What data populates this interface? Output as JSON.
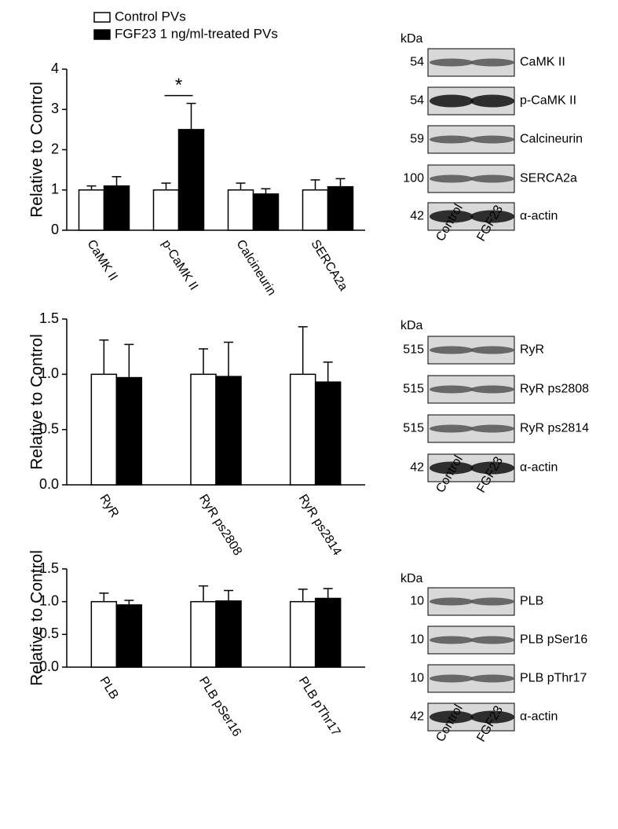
{
  "chart_data": [
    {
      "type": "bar",
      "ylabel": "Relative to Control",
      "annotation": "*",
      "categories": [
        "CaMK II",
        "p-CaMK II",
        "Calcineurin",
        "SERCA2a"
      ],
      "series": [
        {
          "name": "Control PVs",
          "color": "#ffffff",
          "values": [
            1,
            1,
            1,
            1
          ],
          "errors": [
            0.1,
            0.17,
            0.17,
            0.25
          ]
        },
        {
          "name": "FGF23 1 ng/ml-treated PVs",
          "color": "#000000",
          "values": [
            1.1,
            2.5,
            0.9,
            1.08
          ],
          "errors": [
            0.23,
            0.65,
            0.13,
            0.2
          ]
        }
      ],
      "ylim": [
        0,
        4
      ],
      "yticks": [
        0,
        1,
        2,
        3,
        4
      ]
    },
    {
      "type": "bar",
      "ylabel": "Relative to Control",
      "categories": [
        "RyR",
        "RyR ps2808",
        "RyR ps2814"
      ],
      "series": [
        {
          "color": "#ffffff",
          "values": [
            1,
            1,
            1
          ],
          "errors": [
            0.31,
            0.23,
            0.43
          ]
        },
        {
          "color": "#000000",
          "values": [
            0.97,
            0.98,
            0.93
          ],
          "errors": [
            0.3,
            0.31,
            0.18
          ]
        }
      ],
      "ylim": [
        0,
        1.5
      ],
      "yticks": [
        {
          "value": 0,
          "label": "0.0"
        },
        0.5,
        {
          "value": 1,
          "label": "1.0"
        },
        1.5
      ]
    },
    {
      "type": "bar",
      "ylabel": "Relative to Control",
      "categories": [
        "PLB",
        "PLB pSer16",
        "PLB pThr17"
      ],
      "series": [
        {
          "color": "#ffffff",
          "values": [
            1,
            1,
            1
          ],
          "errors": [
            0.13,
            0.24,
            0.19
          ]
        },
        {
          "color": "#000000",
          "values": [
            0.95,
            1.01,
            1.05
          ],
          "errors": [
            0.07,
            0.16,
            0.15
          ]
        }
      ],
      "ylim": [
        0,
        1.5
      ],
      "yticks": [
        {
          "value": 0,
          "label": "0.0"
        },
        0.5,
        {
          "value": 1,
          "label": "1.0"
        },
        1.5
      ]
    }
  ],
  "blots": [
    {
      "unit": "kDa",
      "lanes": [
        "Control",
        "FGF23"
      ],
      "rows": [
        {
          "kda": "54",
          "label": "CaMK II"
        },
        {
          "kda": "54",
          "label": "p-CaMK II"
        },
        {
          "kda": "59",
          "label": "Calcineurin"
        },
        {
          "kda": "100",
          "label": "SERCA2a"
        },
        {
          "kda": "42",
          "label": "α-actin"
        }
      ]
    },
    {
      "unit": "kDa",
      "lanes": [
        "Control",
        "FGF23"
      ],
      "rows": [
        {
          "kda": "515",
          "label": "RyR"
        },
        {
          "kda": "515",
          "label": "RyR ps2808"
        },
        {
          "kda": "515",
          "label": "RyR ps2814"
        },
        {
          "kda": "42",
          "label": "α-actin"
        }
      ]
    },
    {
      "unit": "kDa",
      "lanes": [
        "Control",
        "FGF23"
      ],
      "rows": [
        {
          "kda": "10",
          "label": "PLB"
        },
        {
          "kda": "10",
          "label": "PLB pSer16"
        },
        {
          "kda": "10",
          "label": "PLB pThr17"
        },
        {
          "kda": "42",
          "label": "α-actin"
        }
      ]
    }
  ]
}
